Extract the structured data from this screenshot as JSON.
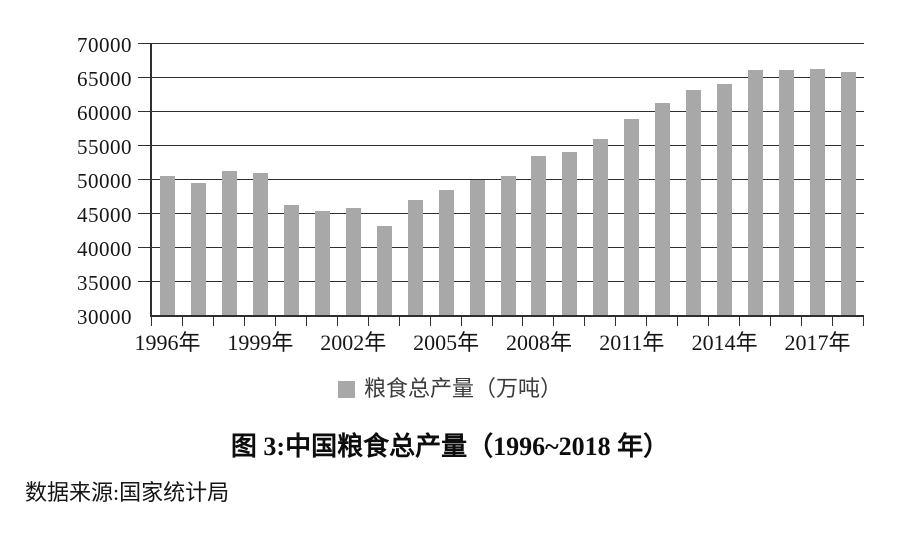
{
  "figure": {
    "caption": "图 3:中国粮食总产量（1996~2018 年）",
    "source": "数据来源:国家统计局",
    "legend_label": "粮食总产量（万吨）"
  },
  "chart_data": {
    "type": "bar",
    "title": "图 3:中国粮食总产量（1996~2018 年）",
    "categories": [
      "1996年",
      "1997年",
      "1998年",
      "1999年",
      "2000年",
      "2001年",
      "2002年",
      "2003年",
      "2004年",
      "2005年",
      "2006年",
      "2007年",
      "2008年",
      "2009年",
      "2010年",
      "2011年",
      "2012年",
      "2013年",
      "2014年",
      "2015年",
      "2016年",
      "2017年",
      "2018年"
    ],
    "series": [
      {
        "name": "粮食总产量（万吨）",
        "values": [
          50454,
          49417,
          51230,
          50839,
          46218,
          45264,
          45706,
          43070,
          46947,
          48402,
          49804,
          50413,
          53434,
          53941,
          55911,
          58849,
          61223,
          63048,
          63965,
          66060,
          66044,
          66161,
          65789
        ]
      }
    ],
    "ylabel": "",
    "xlabel": "",
    "ylim": [
      30000,
      70000
    ],
    "yticks": [
      30000,
      35000,
      40000,
      45000,
      50000,
      55000,
      60000,
      65000,
      70000
    ],
    "xticks_shown": [
      "1996年",
      "1999年",
      "2002年",
      "2005年",
      "2008年",
      "2011年",
      "2014年",
      "2017年"
    ],
    "grid": true,
    "legend_position": "bottom",
    "bar_color": "#a8a8a8",
    "axis_color": "#2f2f2f",
    "source_note": "数据来源:国家统计局"
  }
}
